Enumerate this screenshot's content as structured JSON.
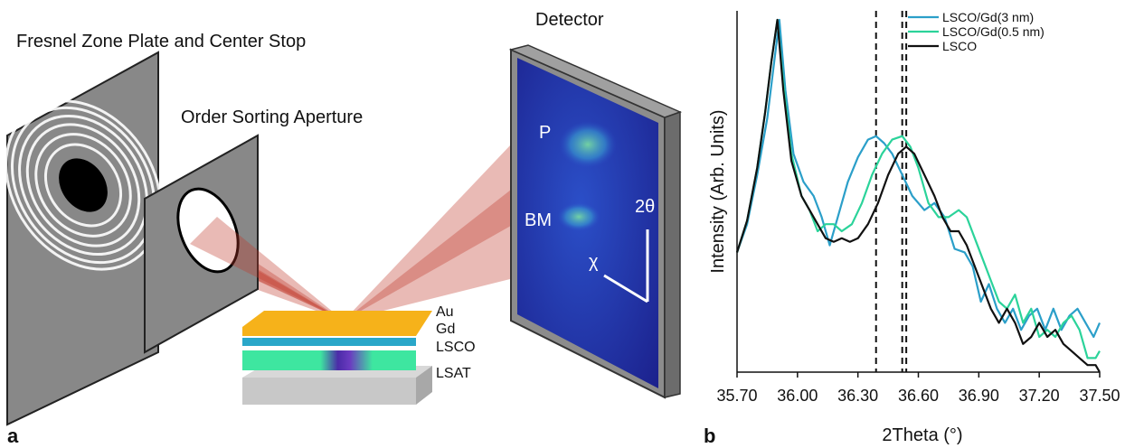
{
  "panel_a": {
    "letter": "a",
    "fzp_label": "Fresnel Zone Plate and Center Stop",
    "osa_label": "Order Sorting Aperture",
    "detector_label": "Detector",
    "detector_p": "P",
    "detector_bm": "BM",
    "axis_2theta": "2θ",
    "axis_chi": "χ",
    "layers": [
      "Au",
      "Gd",
      "LSCO",
      "LSAT"
    ],
    "colors": {
      "au": "#f6b21a",
      "gd": "#2aa7c9",
      "lsco": "#3ee6a0",
      "lsat": "#bdbdbd",
      "beam": "#c0392b",
      "detector": "#1a2a9a"
    }
  },
  "panel_b": {
    "letter": "b",
    "ylabel": "Intensity (Arb. Units)",
    "xlabel": "2Theta (°)"
  },
  "chart_data": {
    "type": "line",
    "xlabel": "2Theta (°)",
    "ylabel": "Intensity (Arb. Units)",
    "xlim": [
      35.7,
      37.5
    ],
    "ylim": [
      0,
      1
    ],
    "x_ticks": [
      "35.70",
      "36.00",
      "36.30",
      "36.60",
      "36.90",
      "37.20",
      "37.50"
    ],
    "y_ticks": [],
    "grid": false,
    "legend_position": "top-right",
    "vlines": [
      36.39,
      36.52,
      36.54
    ],
    "series": [
      {
        "name": "LSCO/Gd(3 nm)",
        "color": "#2b9fc9",
        "x": [
          35.7,
          35.75,
          35.8,
          35.85,
          35.88,
          35.91,
          35.94,
          35.98,
          36.03,
          36.08,
          36.12,
          36.16,
          36.2,
          36.25,
          36.3,
          36.35,
          36.39,
          36.43,
          36.47,
          36.52,
          36.57,
          36.63,
          36.68,
          36.73,
          36.78,
          36.83,
          36.87,
          36.91,
          36.95,
          36.99,
          37.03,
          37.07,
          37.11,
          37.15,
          37.19,
          37.23,
          37.27,
          37.31,
          37.35,
          37.39,
          37.43,
          37.47,
          37.5
        ],
        "y": [
          0.34,
          0.42,
          0.56,
          0.72,
          0.86,
          1.0,
          0.8,
          0.62,
          0.54,
          0.5,
          0.44,
          0.36,
          0.44,
          0.54,
          0.61,
          0.66,
          0.67,
          0.65,
          0.62,
          0.56,
          0.5,
          0.46,
          0.48,
          0.44,
          0.35,
          0.34,
          0.3,
          0.2,
          0.25,
          0.18,
          0.14,
          0.18,
          0.12,
          0.16,
          0.18,
          0.12,
          0.18,
          0.12,
          0.16,
          0.18,
          0.14,
          0.1,
          0.14
        ]
      },
      {
        "name": "LSCO/Gd(0.5 nm)",
        "color": "#2bd39a",
        "x": [
          35.7,
          35.75,
          35.8,
          35.84,
          35.87,
          35.9,
          35.93,
          35.97,
          36.02,
          36.06,
          36.1,
          36.14,
          36.18,
          36.22,
          36.27,
          36.32,
          36.37,
          36.42,
          36.47,
          36.52,
          36.56,
          36.6,
          36.65,
          36.7,
          36.75,
          36.8,
          36.84,
          36.88,
          36.92,
          36.96,
          37.0,
          37.04,
          37.08,
          37.12,
          37.16,
          37.2,
          37.24,
          37.28,
          37.32,
          37.36,
          37.4,
          37.44,
          37.48,
          37.5
        ],
        "y": [
          0.34,
          0.43,
          0.58,
          0.74,
          0.88,
          1.0,
          0.82,
          0.62,
          0.5,
          0.46,
          0.4,
          0.42,
          0.42,
          0.4,
          0.42,
          0.48,
          0.56,
          0.62,
          0.66,
          0.67,
          0.64,
          0.58,
          0.48,
          0.44,
          0.44,
          0.46,
          0.44,
          0.38,
          0.32,
          0.26,
          0.2,
          0.18,
          0.22,
          0.14,
          0.18,
          0.1,
          0.12,
          0.1,
          0.14,
          0.16,
          0.12,
          0.04,
          0.04,
          0.06
        ]
      },
      {
        "name": "LSCO",
        "color": "#111111",
        "x": [
          35.7,
          35.75,
          35.8,
          35.84,
          35.87,
          35.9,
          35.93,
          35.97,
          36.02,
          36.06,
          36.1,
          36.14,
          36.18,
          36.22,
          36.26,
          36.3,
          36.35,
          36.4,
          36.45,
          36.5,
          36.54,
          36.58,
          36.63,
          36.68,
          36.72,
          36.76,
          36.8,
          36.84,
          36.88,
          36.92,
          36.96,
          37.0,
          37.04,
          37.08,
          37.12,
          37.16,
          37.2,
          37.24,
          37.28,
          37.32,
          37.36,
          37.4,
          37.44,
          37.48,
          37.5
        ],
        "y": [
          0.34,
          0.43,
          0.58,
          0.74,
          0.88,
          1.0,
          0.8,
          0.6,
          0.5,
          0.46,
          0.42,
          0.38,
          0.37,
          0.38,
          0.37,
          0.38,
          0.42,
          0.48,
          0.56,
          0.62,
          0.64,
          0.62,
          0.56,
          0.5,
          0.44,
          0.4,
          0.4,
          0.36,
          0.3,
          0.24,
          0.18,
          0.14,
          0.18,
          0.14,
          0.08,
          0.1,
          0.14,
          0.1,
          0.12,
          0.08,
          0.06,
          0.04,
          0.02,
          0.02,
          0.0
        ]
      }
    ]
  }
}
